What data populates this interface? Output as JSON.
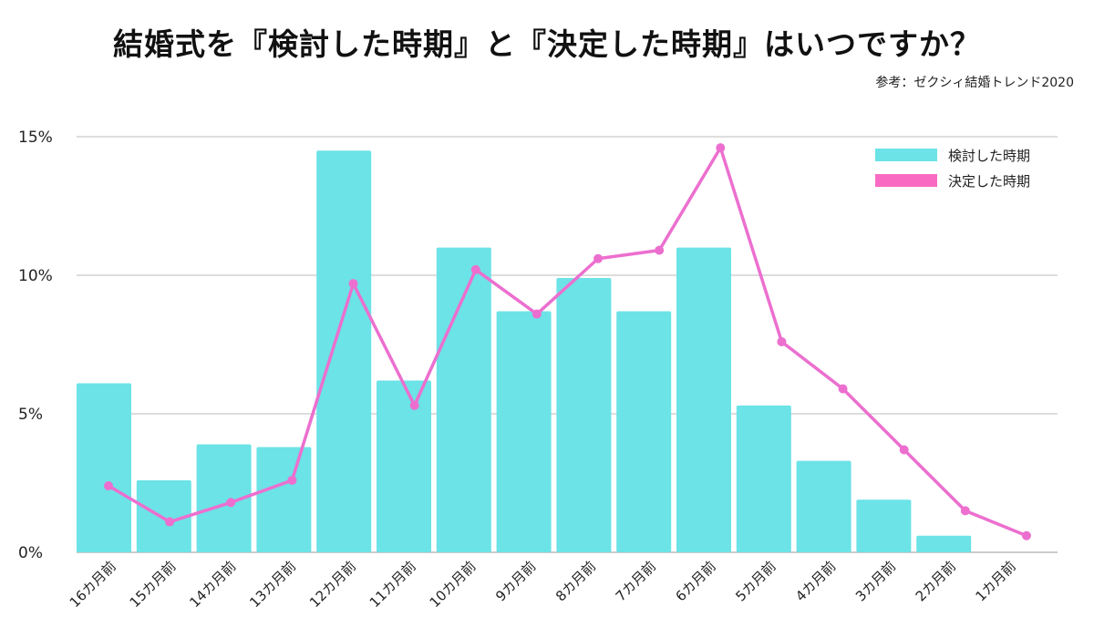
{
  "title": "結婚式を『検討した時期』と『決定した時期』はいつですか？",
  "source": "参考：ゼクシィ結婚トレンド2020",
  "chart_data": {
    "type": "bar+line",
    "title": "結婚式を『検討した時期』と『決定した時期』はいつですか？",
    "categories": [
      "16カ月前",
      "15カ月前",
      "14カ月前",
      "13カ月前",
      "12カ月前",
      "11カ月前",
      "10カ月前",
      "9カ月前",
      "8カ月前",
      "7カ月前",
      "6カ月前",
      "5カ月前",
      "4カ月前",
      "3カ月前",
      "2カ月前",
      "1カ月前"
    ],
    "series": [
      {
        "name": "検討した時期",
        "type": "bar",
        "color": "#6ce3e6",
        "values": [
          6.1,
          2.6,
          3.9,
          3.8,
          14.5,
          6.2,
          11.0,
          8.7,
          9.9,
          8.7,
          11.0,
          5.3,
          3.3,
          1.9,
          0.6,
          0
        ]
      },
      {
        "name": "決定した時期",
        "type": "line",
        "color": "#ec6fcf",
        "values": [
          2.4,
          1.1,
          1.8,
          2.6,
          9.7,
          5.3,
          10.2,
          8.6,
          10.6,
          10.9,
          14.6,
          7.6,
          5.9,
          3.7,
          1.5,
          0.6
        ]
      }
    ],
    "yticks": [
      "0%",
      "5%",
      "10%",
      "15%"
    ],
    "ylim": [
      0,
      15
    ],
    "grid": true,
    "legend": "top-right"
  }
}
